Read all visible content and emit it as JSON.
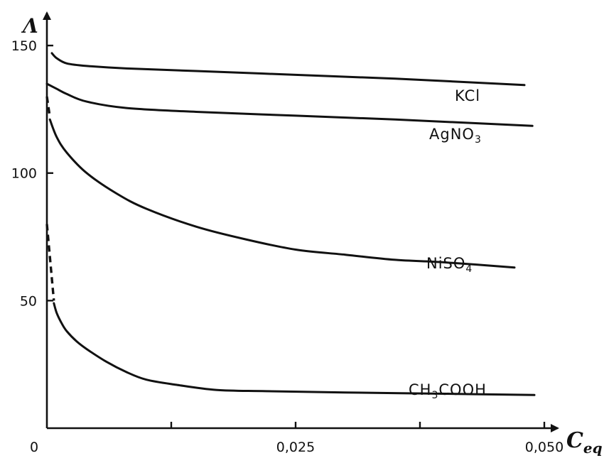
{
  "chart_data": {
    "type": "line",
    "title": "",
    "xlabel": "C",
    "xlabel_sub": "eq",
    "ylabel": "Λ",
    "xlim": [
      0,
      0.052
    ],
    "ylim": [
      0,
      162
    ],
    "origin_label": "0",
    "x_ticks": [
      {
        "value": 0.0125,
        "label": ""
      },
      {
        "value": 0.025,
        "label": "0,025"
      },
      {
        "value": 0.0375,
        "label": ""
      },
      {
        "value": 0.05,
        "label": "0,050"
      }
    ],
    "y_ticks": [
      {
        "value": 50,
        "label": "50"
      },
      {
        "value": 100,
        "label": "100"
      },
      {
        "value": 150,
        "label": "150"
      }
    ],
    "grid": false,
    "series": [
      {
        "name": "KCl",
        "label_parts": [
          {
            "t": "KCl",
            "sub": false
          }
        ],
        "x": [
          0.0005,
          0.001,
          0.002,
          0.004,
          0.008,
          0.015,
          0.025,
          0.035,
          0.048
        ],
        "y": [
          147,
          145,
          143,
          142,
          141,
          140,
          138.5,
          137,
          134.5
        ],
        "dashed_x": [],
        "dashed_y": []
      },
      {
        "name": "AgNO3",
        "label_parts": [
          {
            "t": "AgNO",
            "sub": false
          },
          {
            "t": "3",
            "sub": true
          }
        ],
        "x": [
          0,
          0.001,
          0.002,
          0.004,
          0.008,
          0.015,
          0.025,
          0.035,
          0.0488
        ],
        "y": [
          135,
          133,
          131,
          128,
          125.5,
          124,
          122.5,
          121,
          118.5
        ],
        "dashed_x": [],
        "dashed_y": []
      },
      {
        "name": "NiSO4",
        "label_parts": [
          {
            "t": "NiSO",
            "sub": false
          },
          {
            "t": "4",
            "sub": true
          }
        ],
        "x": [
          0.0003,
          0.001,
          0.002,
          0.004,
          0.007,
          0.01,
          0.015,
          0.02,
          0.025,
          0.03,
          0.035,
          0.04,
          0.047
        ],
        "y": [
          121,
          114,
          108,
          100,
          92,
          86,
          79,
          74,
          70,
          68,
          66,
          65,
          63
        ],
        "dashed_x": [
          0,
          0.0003
        ],
        "dashed_y": [
          130,
          122
        ]
      },
      {
        "name": "CH3COOH",
        "label_parts": [
          {
            "t": "CH",
            "sub": false
          },
          {
            "t": "3",
            "sub": true
          },
          {
            "t": "COOH",
            "sub": false
          }
        ],
        "x": [
          0.0007,
          0.001,
          0.0015,
          0.002,
          0.003,
          0.004,
          0.006,
          0.008,
          0.01,
          0.013,
          0.017,
          0.022,
          0.03,
          0.04,
          0.049
        ],
        "y": [
          49,
          45,
          41,
          38,
          34,
          31,
          26,
          22,
          19,
          17,
          15,
          14.5,
          14,
          13.5,
          13
        ],
        "dashed_x": [
          0,
          0.0007
        ],
        "dashed_y": [
          80,
          50
        ]
      }
    ]
  }
}
